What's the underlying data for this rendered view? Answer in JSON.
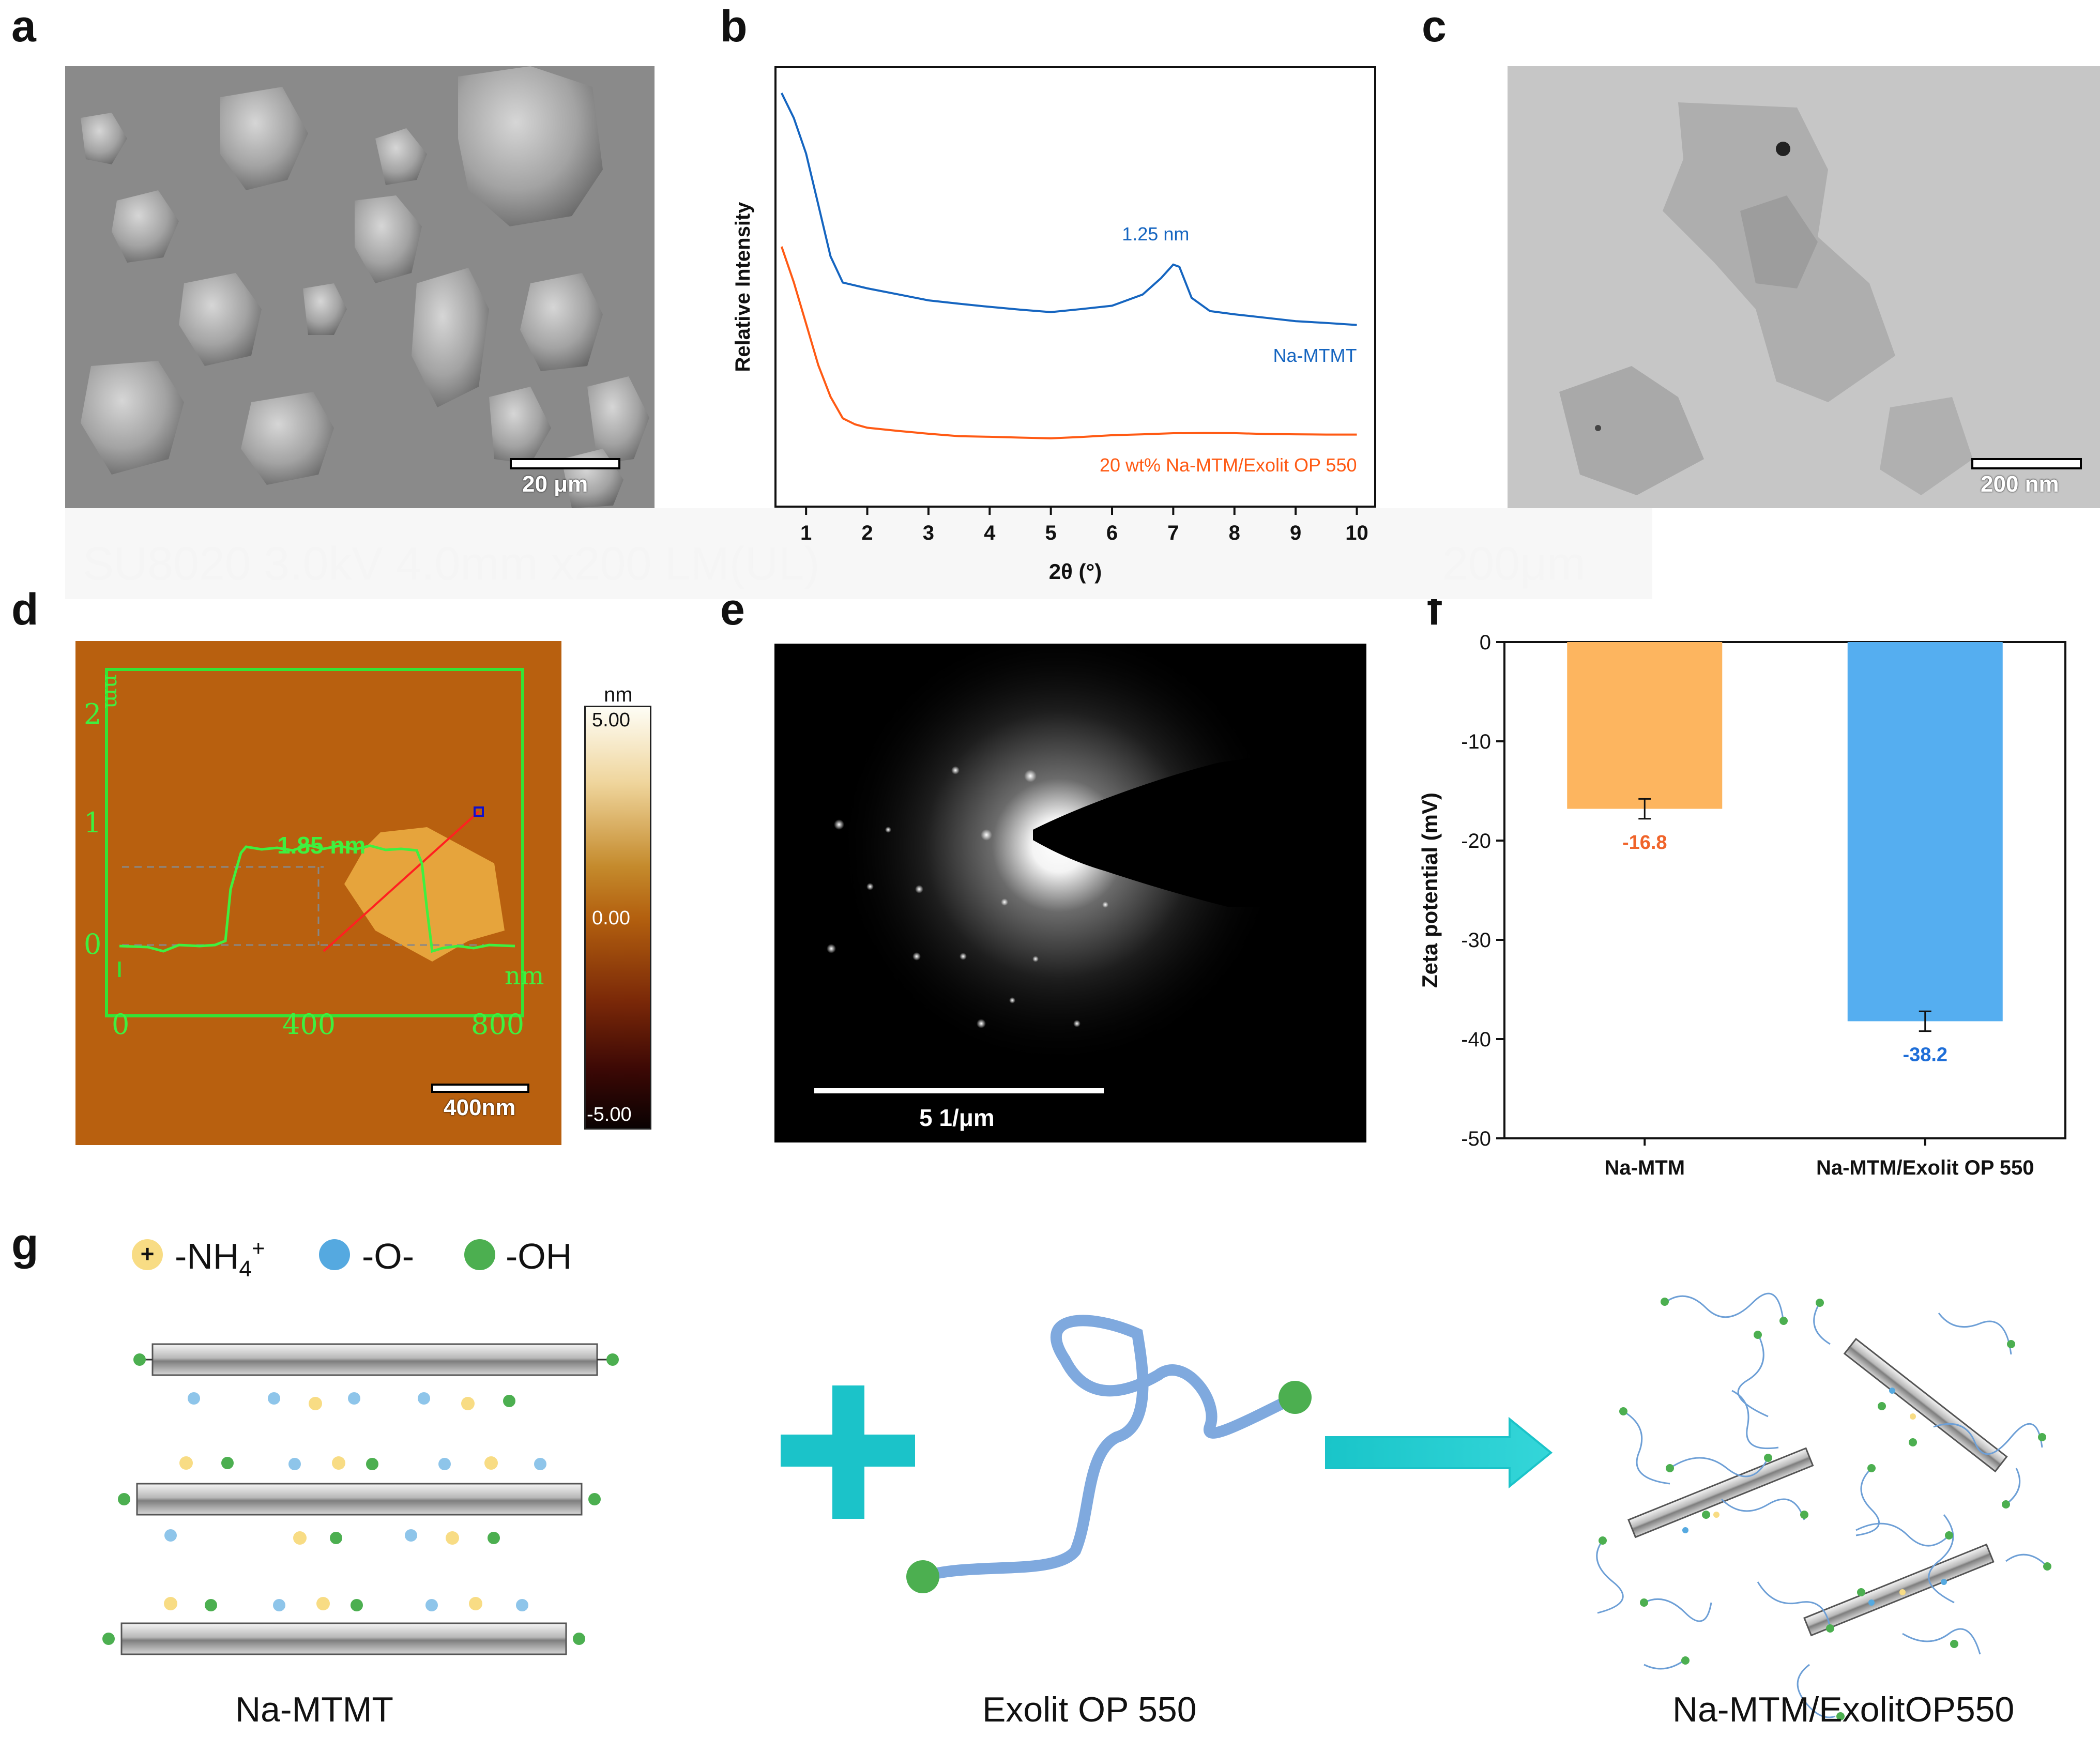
{
  "panels": {
    "a": {
      "letter": "a",
      "scale_label": "20 μm",
      "ghost_footer": "SU8020 3.0kV 4.0mm x200 LM(UL)",
      "ghost_scale": "200μm"
    },
    "b": {
      "letter": "b"
    },
    "c": {
      "letter": "c",
      "scale_label": "200 nm"
    },
    "d": {
      "letter": "d",
      "scale_label": "400nm",
      "y_unit": "nm",
      "x_unit": "nm",
      "height_label": "1.85 nm",
      "y_ticks": [
        "2",
        "1",
        "0"
      ],
      "x_ticks": [
        "0",
        "400",
        "800"
      ],
      "colorbar": {
        "unit": "nm",
        "max": "5.00",
        "mid": "0.00",
        "min": "-5.00"
      }
    },
    "e": {
      "letter": "e",
      "scale_label": "5 1/μm"
    },
    "f": {
      "letter": "f"
    },
    "g": {
      "letter": "g",
      "legend": {
        "plus_symbol": "+",
        "nh4": "-NH",
        "nh4_sub": "4",
        "nh4_sup": "+",
        "o": "-O-",
        "oh": "-OH"
      },
      "captions": [
        "Na-MTMT",
        "Exolit OP 550",
        "Na-MTM/ExolitOP550"
      ],
      "colors": {
        "nh4": "#f8dc84",
        "o": "#55a9e0",
        "oh": "#4caf50",
        "plus": "#1bc3c9",
        "chain": "#7fa9de"
      }
    }
  },
  "chart_data": [
    {
      "type": "line",
      "xlabel": "2θ (°)",
      "ylabel": "Relative Intensity",
      "xlim": [
        0.5,
        10.3
      ],
      "x_ticks": [
        1,
        2,
        3,
        4,
        5,
        6,
        7,
        8,
        9,
        10
      ],
      "y_ticks_shown": false,
      "annotation": "1.25 nm",
      "series": [
        {
          "name": "Na-MTMT",
          "color": "#1565c0",
          "x": [
            0.6,
            0.8,
            1.0,
            1.2,
            1.4,
            1.6,
            2.0,
            2.5,
            3.0,
            3.5,
            4.0,
            4.5,
            5.0,
            5.5,
            6.0,
            6.5,
            6.8,
            7.0,
            7.1,
            7.3,
            7.6,
            8.0,
            8.5,
            9.0,
            9.5,
            10.0
          ],
          "y": [
            1.0,
            0.95,
            0.88,
            0.78,
            0.68,
            0.63,
            0.62,
            0.61,
            0.6,
            0.595,
            0.59,
            0.585,
            0.58,
            0.585,
            0.59,
            0.61,
            0.64,
            0.665,
            0.66,
            0.6,
            0.575,
            0.57,
            0.565,
            0.56,
            0.558,
            0.555
          ]
        },
        {
          "name": "20 wt% Na-MTM/Exolit OP 550",
          "color": "#ff5a14",
          "x": [
            0.6,
            0.8,
            1.0,
            1.2,
            1.4,
            1.6,
            1.8,
            2.0,
            2.5,
            3.0,
            3.5,
            4.0,
            4.5,
            5.0,
            5.5,
            6.0,
            6.5,
            7.0,
            7.5,
            8.0,
            8.5,
            9.0,
            9.5,
            10.0
          ],
          "y": [
            0.7,
            0.63,
            0.55,
            0.47,
            0.41,
            0.37,
            0.36,
            0.355,
            0.35,
            0.345,
            0.34,
            0.338,
            0.335,
            0.332,
            0.333,
            0.335,
            0.336,
            0.338,
            0.339,
            0.34,
            0.34,
            0.341,
            0.342,
            0.343
          ]
        }
      ]
    },
    {
      "type": "bar",
      "categories": [
        "Na-MTM",
        "Na-MTM/Exolit OP 550"
      ],
      "values": [
        -16.8,
        -38.2
      ],
      "errors": [
        1.0,
        1.0
      ],
      "value_labels": [
        "-16.8",
        "-38.2"
      ],
      "colors": [
        "#fdb55f",
        "#55aef0"
      ],
      "label_colors": [
        "#f0642a",
        "#1e6ed8"
      ],
      "ylabel": "Zeta potential (mV)",
      "xlabel": "",
      "ylim": [
        -50,
        0
      ],
      "y_ticks": [
        0,
        -10,
        -20,
        -30,
        -40,
        -50
      ]
    }
  ]
}
